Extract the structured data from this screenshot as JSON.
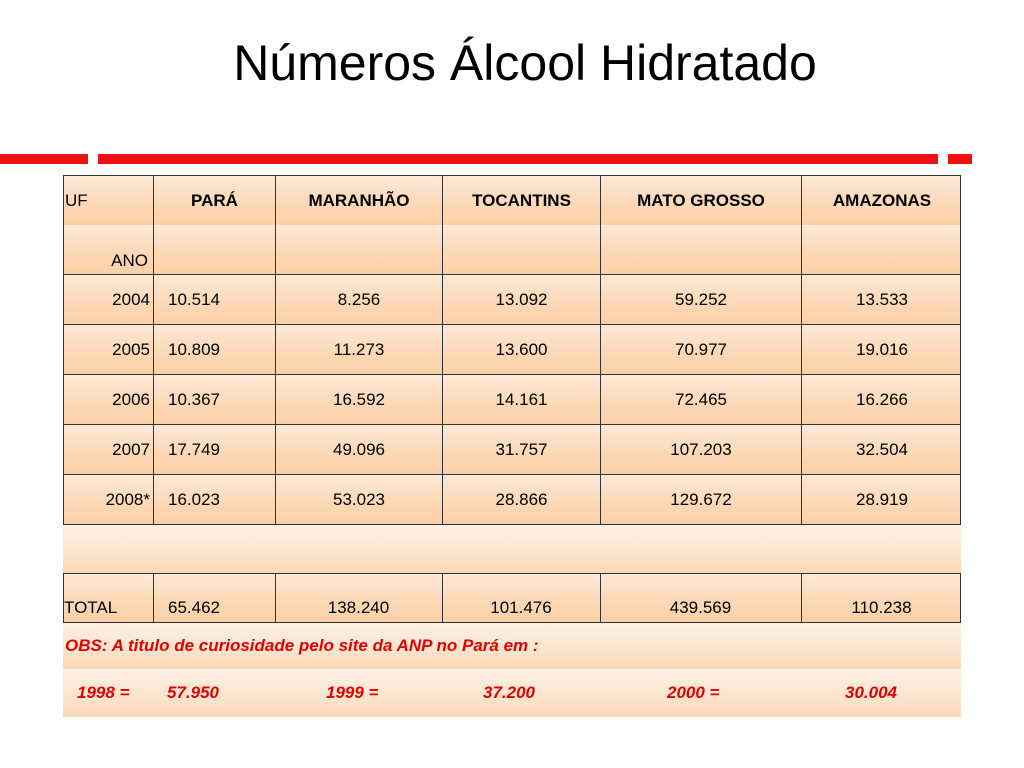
{
  "title": "Números Álcool Hidratado",
  "accent_color": "#ee1111",
  "header": {
    "uf_label": "UF",
    "ano_label": "ANO",
    "columns": [
      "PARÁ",
      "MARANHÃO",
      "TOCANTINS",
      "MATO GROSSO",
      "AMAZONAS"
    ]
  },
  "rows": [
    {
      "year": "2004",
      "values": [
        "10.514",
        "8.256",
        "13.092",
        "59.252",
        "13.533"
      ]
    },
    {
      "year": "2005",
      "values": [
        "10.809",
        "11.273",
        "13.600",
        "70.977",
        "19.016"
      ]
    },
    {
      "year": "2006",
      "values": [
        "10.367",
        "16.592",
        "14.161",
        "72.465",
        "16.266"
      ]
    },
    {
      "year": "2007",
      "values": [
        "17.749",
        "49.096",
        "31.757",
        "107.203",
        "32.504"
      ]
    },
    {
      "year": "2008*",
      "values": [
        "16.023",
        "53.023",
        "28.866",
        "129.672",
        "28.919"
      ]
    }
  ],
  "total": {
    "label": "TOTAL",
    "values": [
      "65.462",
      "138.240",
      "101.476",
      "439.569",
      "110.238"
    ]
  },
  "obs": {
    "text": "OBS: A titulo de curiosidade pelo site da ANP no Pará em :",
    "items": [
      {
        "label": "1998 =",
        "value": "57.950"
      },
      {
        "label": "1999 =",
        "value": "37.200"
      },
      {
        "label": "2000 =",
        "value": "30.004"
      }
    ]
  }
}
